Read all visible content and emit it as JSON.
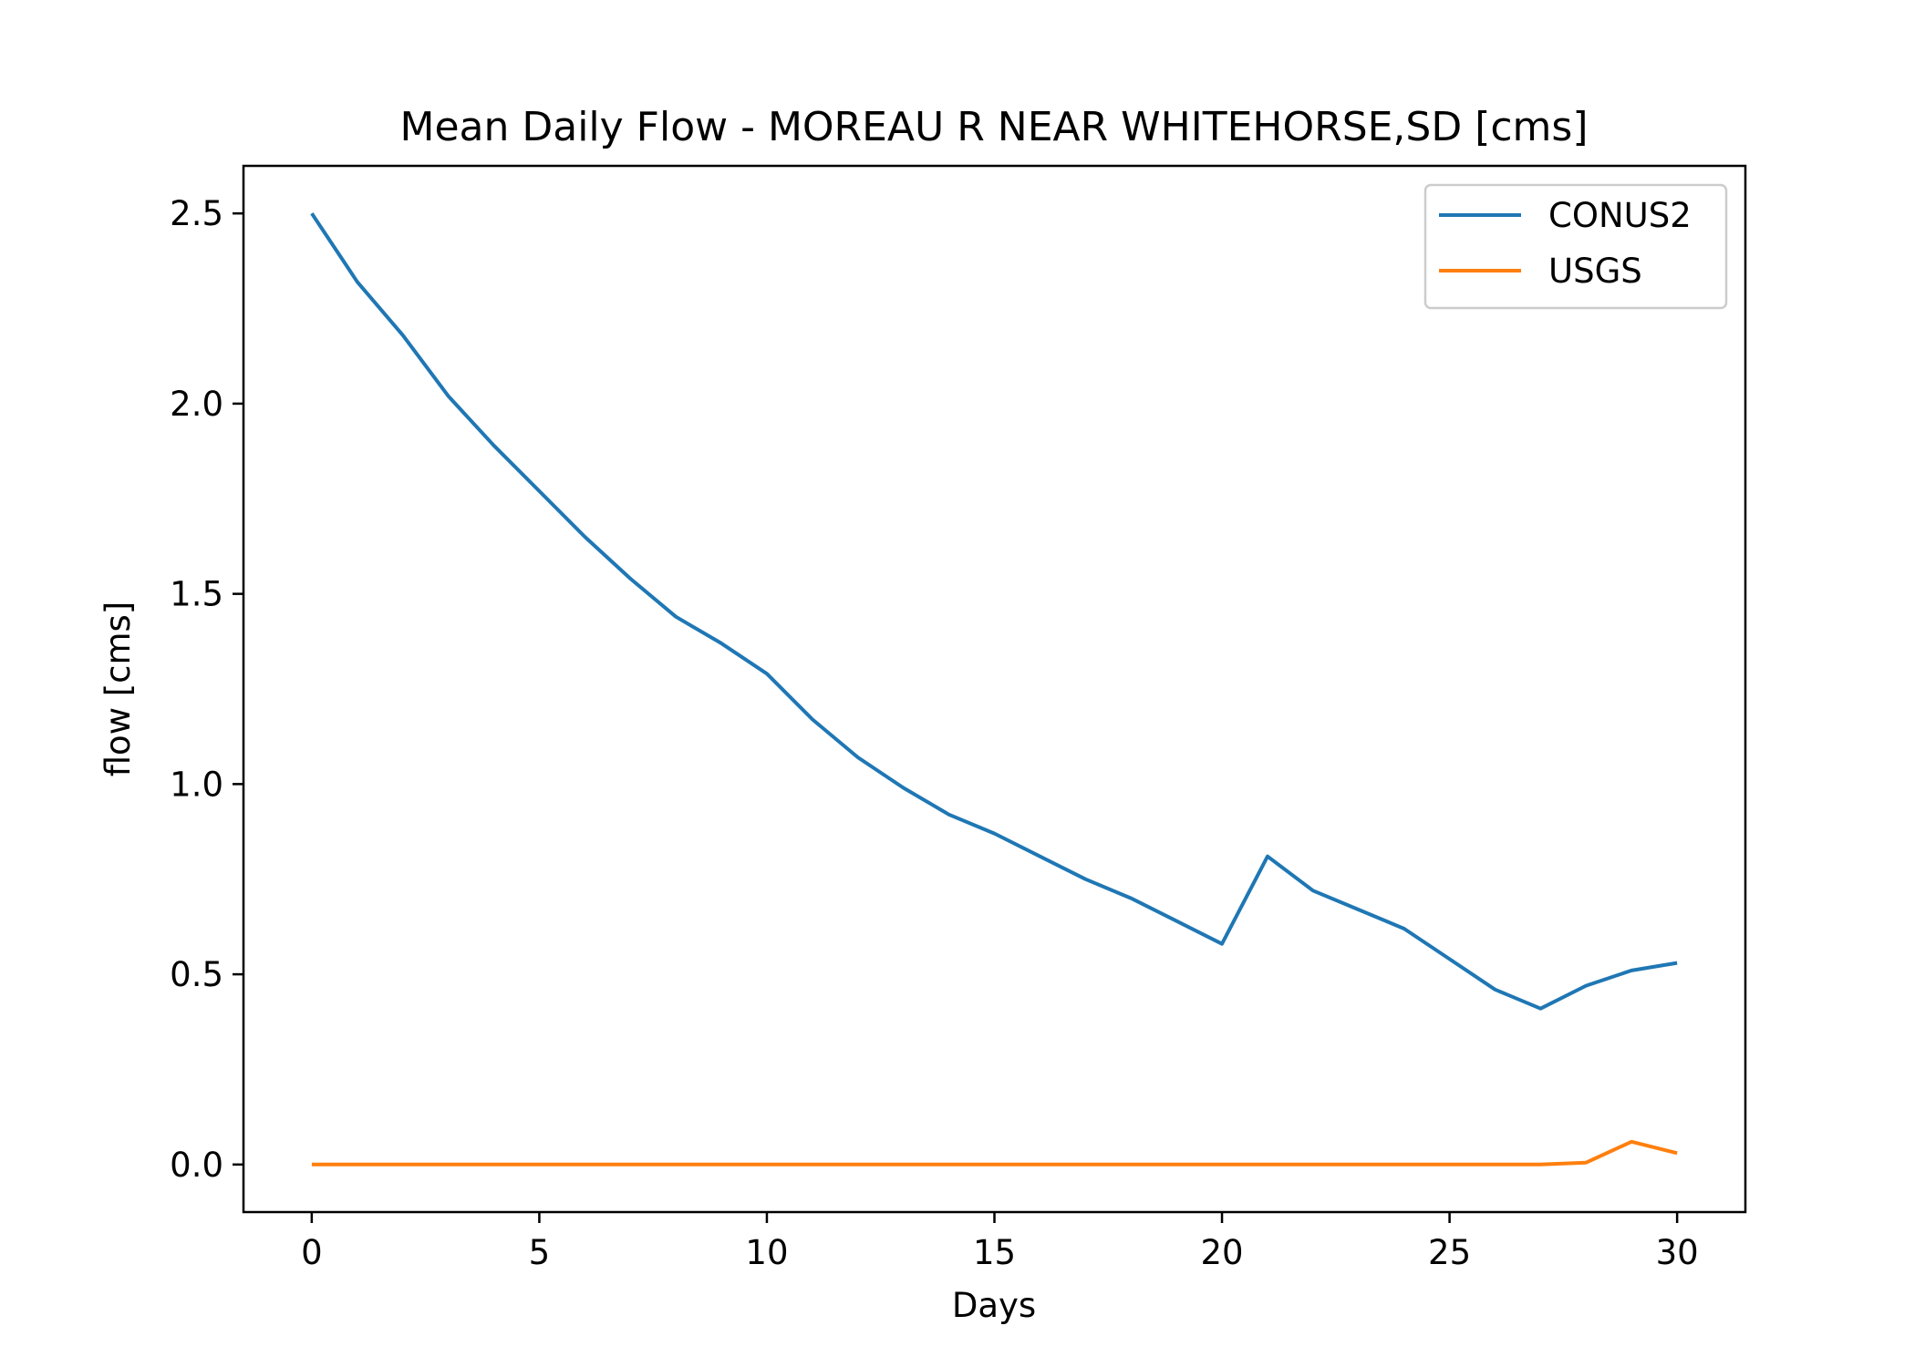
{
  "chart_data": {
    "type": "line",
    "title": "Mean Daily Flow - MOREAU R NEAR WHITEHORSE,SD [cms]",
    "xlabel": "Days",
    "ylabel": "flow [cms]",
    "xlim": [
      -1.5,
      31.5
    ],
    "ylim": [
      -0.125,
      2.625
    ],
    "xticks": [
      0,
      5,
      10,
      15,
      20,
      25,
      30
    ],
    "xtick_labels": [
      "0",
      "5",
      "10",
      "15",
      "20",
      "25",
      "30"
    ],
    "yticks": [
      0.0,
      0.5,
      1.0,
      1.5,
      2.0,
      2.5
    ],
    "ytick_labels": [
      "0.0",
      "0.5",
      "1.0",
      "1.5",
      "2.0",
      "2.5"
    ],
    "grid": false,
    "legend_position": "top-right",
    "x": [
      0,
      1,
      2,
      3,
      4,
      5,
      6,
      7,
      8,
      9,
      10,
      11,
      12,
      13,
      14,
      15,
      16,
      17,
      18,
      19,
      20,
      21,
      22,
      23,
      24,
      25,
      26,
      27,
      28,
      29,
      30
    ],
    "series": [
      {
        "name": "CONUS2",
        "color": "#1f77b4",
        "values": [
          2.5,
          2.32,
          2.18,
          2.02,
          1.89,
          1.77,
          1.65,
          1.54,
          1.44,
          1.37,
          1.29,
          1.17,
          1.07,
          0.99,
          0.92,
          0.87,
          0.81,
          0.75,
          0.7,
          0.64,
          0.58,
          0.81,
          0.72,
          0.67,
          0.62,
          0.54,
          0.46,
          0.41,
          0.47,
          0.51,
          0.53
        ]
      },
      {
        "name": "USGS",
        "color": "#ff7f0e",
        "values": [
          0,
          0,
          0,
          0,
          0,
          0,
          0,
          0,
          0,
          0,
          0,
          0,
          0,
          0,
          0,
          0,
          0,
          0,
          0,
          0,
          0,
          0,
          0,
          0,
          0,
          0,
          0,
          0,
          0.005,
          0.06,
          0.03
        ]
      }
    ]
  }
}
